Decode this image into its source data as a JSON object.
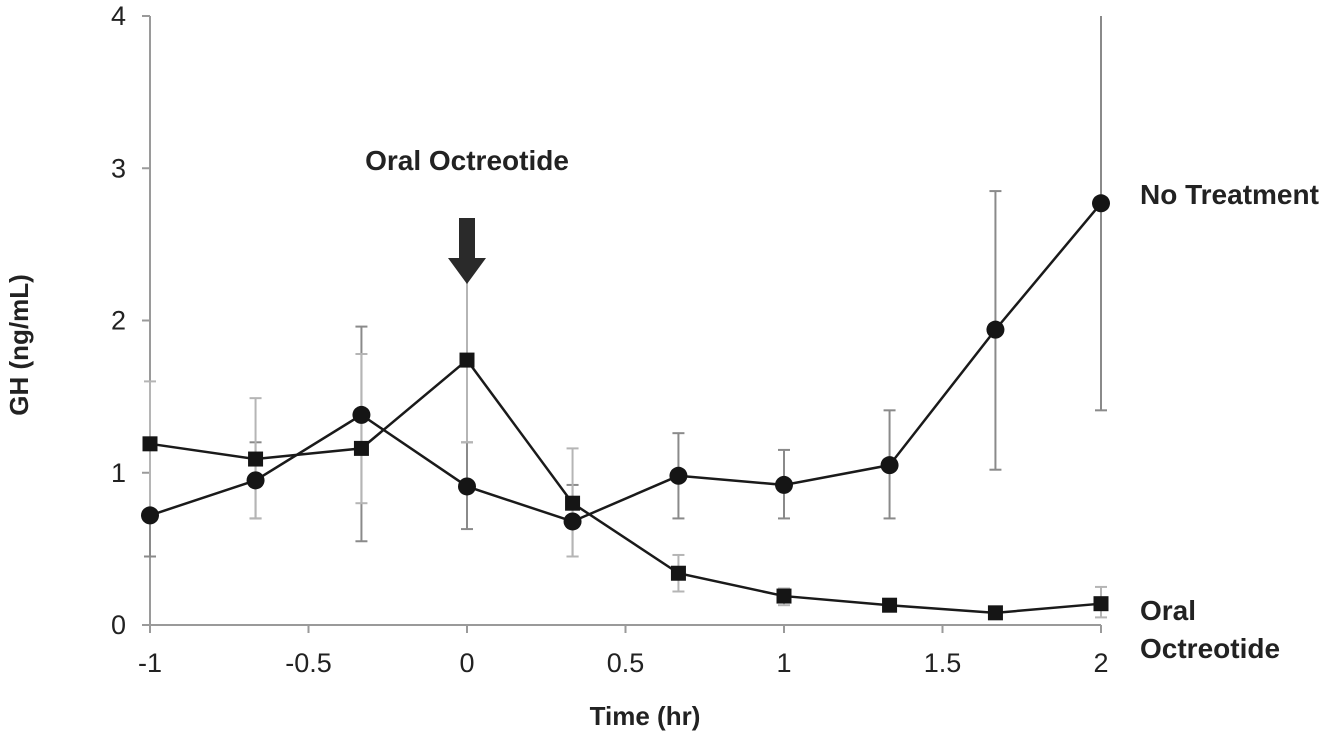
{
  "chart_data": {
    "type": "line",
    "title": "",
    "xlabel": "Time (hr)",
    "ylabel": "GH (ng/mL)",
    "xlim": [
      -1,
      2
    ],
    "ylim": [
      0,
      4
    ],
    "x_ticks": [
      -1,
      -0.5,
      0,
      0.5,
      1,
      1.5,
      2
    ],
    "x_tick_labels": [
      "-1",
      "-0.5",
      "0",
      "0.5",
      "1",
      "1.5",
      "2"
    ],
    "y_ticks": [
      0,
      1,
      2,
      3,
      4
    ],
    "y_tick_labels": [
      "0",
      "1",
      "2",
      "3",
      "4"
    ],
    "grid": false,
    "legend": "none",
    "series": [
      {
        "name": "No Treatment",
        "marker": "circle",
        "x": [
          -1,
          -0.667,
          -0.333,
          0,
          0.333,
          0.667,
          1,
          1.333,
          1.667,
          2
        ],
        "values": [
          0.72,
          0.95,
          1.38,
          0.91,
          0.68,
          0.98,
          0.92,
          1.05,
          1.94,
          2.77
        ],
        "err_low": [
          0.45,
          0.7,
          0.55,
          0.63,
          0.45,
          0.7,
          0.7,
          0.7,
          1.02,
          1.41
        ],
        "err_high": [
          0.72,
          1.2,
          1.96,
          1.2,
          0.92,
          1.26,
          1.15,
          1.41,
          2.85,
          4.0
        ]
      },
      {
        "name": "Oral Octreotide",
        "marker": "square",
        "x": [
          -1,
          -0.667,
          -0.333,
          0,
          0.333,
          0.667,
          1,
          1.333,
          1.667,
          2
        ],
        "values": [
          1.19,
          1.09,
          1.16,
          1.74,
          0.8,
          0.34,
          0.19,
          0.13,
          0.08,
          0.14
        ],
        "err_low": [
          0.72,
          0.7,
          0.8,
          1.2,
          0.45,
          0.22,
          0.13,
          0.1,
          0.06,
          0.05
        ],
        "err_high": [
          1.6,
          1.49,
          1.78,
          2.3,
          1.16,
          0.46,
          0.24,
          0.16,
          0.1,
          0.25
        ]
      }
    ],
    "annotations": {
      "arrow_label": "Oral Octreotide",
      "arrow_x": 0,
      "series_label_no_treatment": "No Treatment",
      "series_label_oral_line1": "Oral",
      "series_label_oral_line2": "Octreotide"
    }
  }
}
